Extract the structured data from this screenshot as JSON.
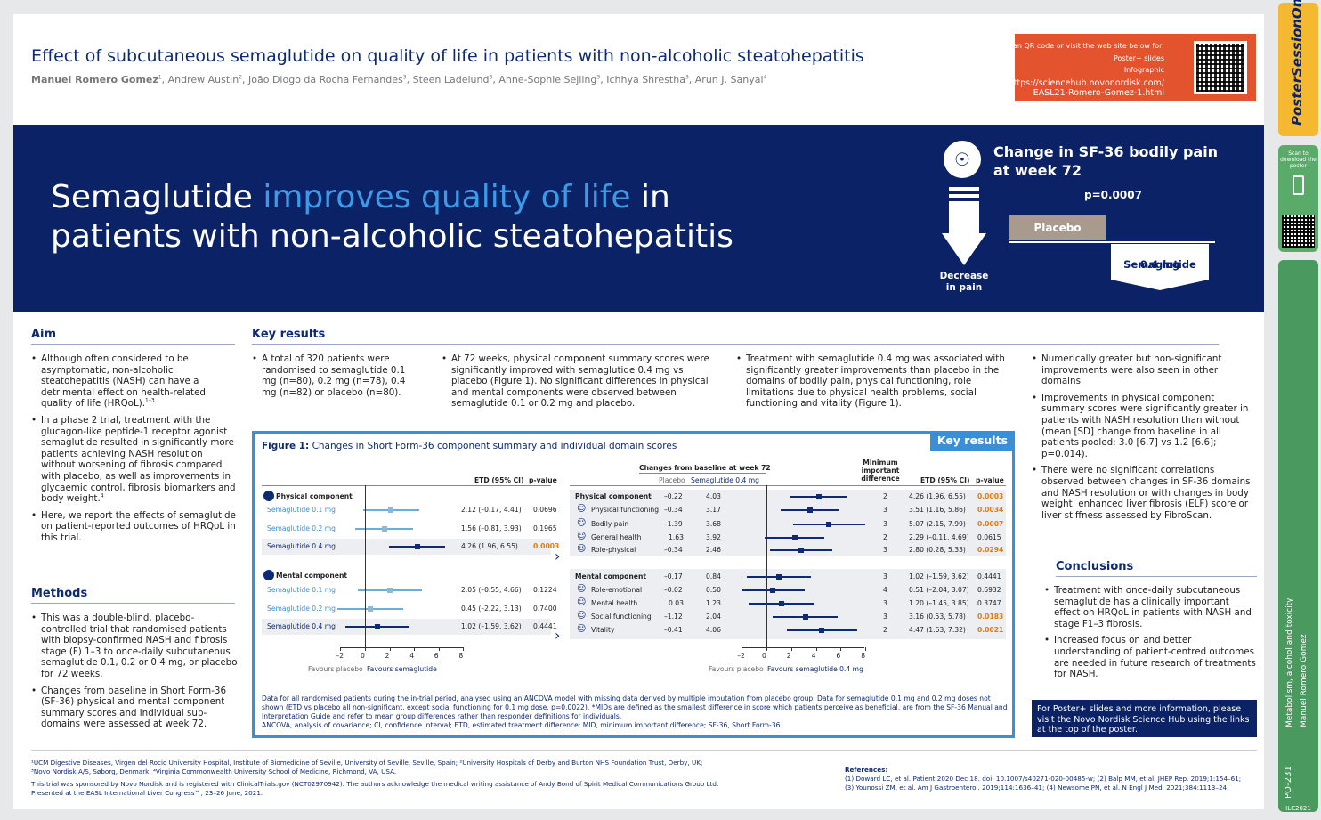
{
  "header": {
    "title": "Effect of subcutaneous semaglutide on quality of life in patients with non-alcoholic steatohepatitis",
    "authors_lead": "Manuel Romero Gomez",
    "authors_rest": ", Andrew Austin",
    "a2": ", João Diogo da Rocha Fernandes",
    "a3": ", Steen Ladelund",
    "a4": ", Anne-Sophie Sejling",
    "a5": ", Ichhya Shrestha",
    "a6": ", Arun J. Sanyal",
    "qr_line1": "Scan QR code or visit the web site below for:",
    "qr_line2": "Poster+ slides",
    "qr_line3": "Infographic",
    "qr_url1": "https://sciencehub.novonordisk.com/",
    "qr_url2": "EASL21-Romero-Gomez-1.html"
  },
  "banner": {
    "h1a": "Semaglutide ",
    "h1b": "improves quality of life",
    "h1c": " in",
    "h2": "patients with non-alcoholic steatohepatitis",
    "sf_title1": "Change in SF-36 bodily pain",
    "sf_title2": "at week 72",
    "pvalue": "p=0.0007",
    "decrease1": "Decrease",
    "decrease2": "in pain",
    "placebo": "Placebo",
    "sema1": "Semaglutide",
    "sema2": "0.4 mg"
  },
  "aim": {
    "heading": "Aim",
    "b1": "Although often considered to be asymptomatic, non-alcoholic steatohepatitis (NASH) can have a detrimental effect on health-related quality of life (HRQoL).",
    "b2": "In a phase 2 trial, treatment with the glucagon-like peptide-1 receptor agonist semaglutide resulted in significantly more patients achieving NASH resolution without worsening of fibrosis compared with placebo, as well as improvements in glycaemic control, fibrosis biomarkers and body weight.",
    "b3": "Here, we report the effects of semaglutide on patient-reported outcomes of HRQoL in this trial."
  },
  "methods": {
    "heading": "Methods",
    "b1": "This was a double-blind, placebo-controlled trial that randomised patients with biopsy-confirmed NASH and fibrosis stage (F) 1–3 to once-daily subcutaneous semaglutide 0.1, 0.2 or 0.4 mg, or placebo for 72 weeks.",
    "b2": "Changes from baseline in Short Form-36 (SF-36) physical and mental component summary scores and individual sub-domains were assessed at week 72."
  },
  "keyresults": {
    "heading": "Key results",
    "c1": "A total of 320 patients were randomised to semaglutide 0.1 mg (n=80), 0.2 mg (n=78), 0.4 mg (n=82) or placebo (n=80).",
    "c2": "At 72 weeks, physical component summary scores were significantly improved with semaglutide 0.4 mg vs placebo (Figure 1). No significant differences in physical and mental components were observed between semaglutide 0.1 or 0.2 mg and placebo.",
    "c3": "Treatment with semaglutide 0.4 mg was associated with significantly greater improvements than placebo in the domains of bodily pain, physical functioning, role limitations due to physical health problems, social functioning and vitality (Figure 1).",
    "r1": "Numerically greater but non-significant improvements were also seen in other domains.",
    "r2": "Improvements in physical component summary scores were significantly greater in patients with NASH resolution than without (mean [SD] change from baseline in all patients pooled: 3.0 [6.7] vs 1.2 [6.6]; p=0.014).",
    "r3": "There were no significant correlations observed between changes in SF-36 domains and NASH resolution or with changes in body weight, enhanced liver fibrosis (ELF) score or liver stiffness assessed by FibroScan."
  },
  "conclusions": {
    "heading": "Conclusions",
    "b1": "Treatment with once-daily subcutaneous semaglutide has a clinically important effect on HRQoL in patients with NASH and stage F1–3 fibrosis.",
    "b2": "Increased focus on and better understanding of patient-centred outcomes are needed in future research of treatments for NASH."
  },
  "info": "For Poster+ slides and more information, please visit the Novo Nordisk Science Hub using the links at the top of the poster.",
  "figure": {
    "tag": "Key results",
    "cap_label": "Figure 1:",
    "cap": " Changes in Short Form-36 component summary and individual domain scores",
    "h_etd": "ETD (95% CI)",
    "h_p": "p-value",
    "h_cfb": "Changes from baseline at week 72",
    "h_pl": "Placebo",
    "h_se": "Semaglutide 0.4 mg",
    "h_mid": "Minimum important difference",
    "phys": "Physical component",
    "ment": "Mental component",
    "left_rows": [
      {
        "label": "Semaglutide 0.1 mg",
        "etd": "2.12 (–0.17, 4.41)",
        "p": "0.0696"
      },
      {
        "label": "Semaglutide 0.2 mg",
        "etd": "1.56 (–0.81, 3.93)",
        "p": "0.1965"
      },
      {
        "label": "Semaglutide 0.4 mg",
        "etd": "4.26 (1.96, 6.55)",
        "p": "0.0003"
      },
      {
        "label": "Semaglutide 0.1 mg",
        "etd": "2.05 (–0.55, 4.66)",
        "p": "0.1224"
      },
      {
        "label": "Semaglutide 0.2 mg",
        "etd": "0.45 (–2.22, 3.13)",
        "p": "0.7400"
      },
      {
        "label": "Semaglutide 0.4 mg",
        "etd": "1.02 (–1.59, 3.62)",
        "p": "0.4441"
      }
    ],
    "right_rows": [
      {
        "label": "Physical component",
        "pl": "–0.22",
        "se": "4.03",
        "mid": "2",
        "etd": "4.26 (1.96, 6.55)",
        "p": "0.0003"
      },
      {
        "label": "Physical functioning",
        "pl": "–0.34",
        "se": "3.17",
        "mid": "3",
        "etd": "3.51 (1.16, 5.86)",
        "p": "0.0034"
      },
      {
        "label": "Bodily pain",
        "pl": "–1.39",
        "se": "3.68",
        "mid": "3",
        "etd": "5.07 (2.15, 7.99)",
        "p": "0.0007"
      },
      {
        "label": "General health",
        "pl": "1.63",
        "se": "3.92",
        "mid": "2",
        "etd": "2.29 (–0.11, 4.69)",
        "p": "0.0615"
      },
      {
        "label": "Role-physical",
        "pl": "–0.34",
        "se": "2.46",
        "mid": "3",
        "etd": "2.80 (0.28, 5.33)",
        "p": "0.0294"
      },
      {
        "label": "Mental component",
        "pl": "–0.17",
        "se": "0.84",
        "mid": "3",
        "etd": "1.02 (–1.59, 3.62)",
        "p": "0.4441"
      },
      {
        "label": "Role-emotional",
        "pl": "–0.02",
        "se": "0.50",
        "mid": "4",
        "etd": "0.51 (–2.04, 3.07)",
        "p": "0.6932"
      },
      {
        "label": "Mental health",
        "pl": "0.03",
        "se": "1.23",
        "mid": "3",
        "etd": "1.20 (–1.45, 3.85)",
        "p": "0.3747"
      },
      {
        "label": "Social functioning",
        "pl": "–1.12",
        "se": "2.04",
        "mid": "3",
        "etd": "3.16 (0.53, 5.78)",
        "p": "0.0183"
      },
      {
        "label": "Vitality",
        "pl": "–0.41",
        "se": "4.06",
        "mid": "2",
        "etd": "4.47 (1.63, 7.32)",
        "p": "0.0021"
      }
    ],
    "ticks": [
      "–2",
      "0",
      "2",
      "4",
      "6",
      "8"
    ],
    "fav_pl": "Favours placebo",
    "fav_se": "Favours semaglutide",
    "fav_se2": "Favours semaglutide 0.4 mg",
    "fn1": "Data for all randomised patients during the in-trial period, analysed using an ANCOVA model with missing data derived by multiple imputation from placebo group. Data for semaglutide 0.1 mg and 0.2 mg doses not shown (ETD vs placebo all non-significant, except social functioning for 0.1 mg dose, p=0.0022). *MIDs are defined as the smallest difference in score which patients perceive as beneficial, are from the SF-36 Manual and Interpretation Guide and refer to mean group differences rather than responder definitions for individuals.",
    "fn2": "ANCOVA, analysis of covariance; CI, confidence interval; ETD, estimated treatment difference; MID, minimum important difference; SF-36, Short Form-36."
  },
  "footer": {
    "aff1": "¹UCM Digestive Diseases, Virgen del Rocio University Hospital, Institute of Biomedicine of Seville, University of Seville, Seville, Spain; ²University Hospitals of Derby and Burton NHS Foundation Trust, Derby, UK;",
    "aff2": "³Novo Nordisk A/S, Søborg, Denmark; ⁴Virginia Commonwealth University School of Medicine, Richmond, VA, USA.",
    "spons1": "This trial was sponsored by Novo Nordisk and is registered with ClinicalTrials.gov (NCT02970942). The authors acknowledge the medical writing assistance of Andy Bond of Spirit Medical Communications Group Ltd.",
    "spons2": "Presented at the EASL International Liver Congress™, 23–26 June, 2021.",
    "ref_h": "References:",
    "ref1": "(1) Doward LC, et al. Patient 2020 Dec 18. doi: 10.1007/s40271-020-00485-w; (2) Balp MM, et al. JHEP Rep. 2019;1:154–61;",
    "ref2": "(3) Younossi ZM, et al. Am J Gastroenterol. 2019;114:1636–41; (4) Newsome PN, et al. N Engl J Med. 2021;384:1113–24."
  },
  "sidebar": {
    "brand": "PosterSessionOnline",
    "scan": "Scan to download the poster",
    "topic": "Metabolism, alcohol and toxicity",
    "author": "Manuel Romero Gomez",
    "code": "PO-231",
    "congress": "ILC2021"
  },
  "chart_data": {
    "type": "forest",
    "xlim": [
      -2,
      8
    ],
    "left": [
      {
        "group": "Physical component",
        "etd": [
          2.12,
          1.56,
          4.26
        ],
        "lo": [
          -0.17,
          -0.81,
          1.96
        ],
        "hi": [
          4.41,
          3.93,
          6.55
        ]
      },
      {
        "group": "Mental component",
        "etd": [
          2.05,
          0.45,
          1.02
        ],
        "lo": [
          -0.55,
          -2.22,
          -1.59
        ],
        "hi": [
          4.66,
          3.13,
          3.62
        ]
      }
    ],
    "right": {
      "etd": [
        4.26,
        3.51,
        5.07,
        2.29,
        2.8,
        1.02,
        0.51,
        1.2,
        3.16,
        4.47
      ],
      "lo": [
        1.96,
        1.16,
        2.15,
        -0.11,
        0.28,
        -1.59,
        -2.04,
        -1.45,
        0.53,
        1.63
      ],
      "hi": [
        6.55,
        5.86,
        7.99,
        4.69,
        5.33,
        3.62,
        3.07,
        3.85,
        5.78,
        7.32
      ]
    }
  }
}
